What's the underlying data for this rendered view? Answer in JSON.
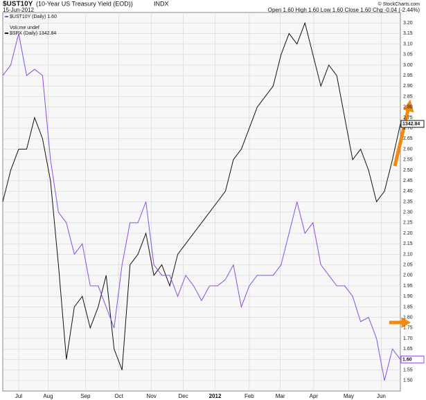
{
  "chart_data": {
    "type": "line",
    "title": "$UST10Y",
    "subtitle": "(10-Year US Treasury Yield (EOD))",
    "exchange": "INDX",
    "date": "15-Jun-2012",
    "quote": "Open 1.60 High 1.60 Low 1.60 Close 1.60 Chg -0.04 (-2.44%)",
    "credit": "© StockCharts.com",
    "volume_legend": "Volume undef",
    "grid": true,
    "x": [
      0,
      1,
      2,
      3,
      4,
      5,
      6,
      7,
      8,
      9,
      10,
      11,
      12,
      13,
      14,
      15,
      16,
      17,
      18,
      19,
      20,
      21,
      22,
      23,
      24,
      25,
      26,
      27,
      28,
      29,
      30,
      31,
      32,
      33,
      34,
      35,
      36,
      37,
      38,
      39,
      40,
      41,
      42,
      43,
      44,
      45,
      46,
      47,
      48,
      49,
      50
    ],
    "xlim": [
      0,
      50
    ],
    "xticks": [
      {
        "value": 2.0,
        "label": "Jul"
      },
      {
        "value": 5.7,
        "label": "Aug"
      },
      {
        "value": 10.4,
        "label": "Sep"
      },
      {
        "value": 14.6,
        "label": "Oct"
      },
      {
        "value": 18.7,
        "label": "Nov"
      },
      {
        "value": 22.7,
        "label": "Dec"
      },
      {
        "value": 26.7,
        "label": "2012"
      },
      {
        "value": 31.0,
        "label": "Feb"
      },
      {
        "value": 34.9,
        "label": "Mar"
      },
      {
        "value": 39.1,
        "label": "Apr"
      },
      {
        "value": 43.5,
        "label": "May"
      },
      {
        "value": 47.6,
        "label": "Jun"
      }
    ],
    "ylim": [
      1.45,
      3.25
    ],
    "yticks": [
      {
        "value": 1.5,
        "label": "1.50"
      },
      {
        "value": 1.55,
        "label": "1.55"
      },
      {
        "value": 1.6,
        "label": "1.60"
      },
      {
        "value": 1.65,
        "label": "1.65"
      },
      {
        "value": 1.7,
        "label": "1.70"
      },
      {
        "value": 1.75,
        "label": "1.75"
      },
      {
        "value": 1.8,
        "label": "1.80"
      },
      {
        "value": 1.85,
        "label": "1.85"
      },
      {
        "value": 1.9,
        "label": "1.90"
      },
      {
        "value": 1.95,
        "label": "1.95"
      },
      {
        "value": 2.0,
        "label": "2.00"
      },
      {
        "value": 2.05,
        "label": "2.05"
      },
      {
        "value": 2.1,
        "label": "2.10"
      },
      {
        "value": 2.15,
        "label": "2.15"
      },
      {
        "value": 2.2,
        "label": "2.20"
      },
      {
        "value": 2.25,
        "label": "2.25"
      },
      {
        "value": 2.3,
        "label": "2.30"
      },
      {
        "value": 2.35,
        "label": "2.35"
      },
      {
        "value": 2.4,
        "label": "2.40"
      },
      {
        "value": 2.45,
        "label": "2.45"
      },
      {
        "value": 2.5,
        "label": "2.50"
      },
      {
        "value": 2.55,
        "label": "2.55"
      },
      {
        "value": 2.6,
        "label": "2.60"
      },
      {
        "value": 2.65,
        "label": "2.65"
      },
      {
        "value": 2.7,
        "label": "2.70"
      },
      {
        "value": 2.75,
        "label": "2.75"
      },
      {
        "value": 2.8,
        "label": "2.80"
      },
      {
        "value": 2.85,
        "label": "2.85"
      },
      {
        "value": 2.9,
        "label": "2.90"
      },
      {
        "value": 2.95,
        "label": "2.95"
      },
      {
        "value": 3.0,
        "label": "3.00"
      },
      {
        "value": 3.05,
        "label": "3.05"
      },
      {
        "value": 3.1,
        "label": "3.10"
      },
      {
        "value": 3.15,
        "label": "3.15"
      },
      {
        "value": 3.2,
        "label": "3.20"
      }
    ],
    "series": [
      {
        "name": "$UST10Y (Daily) 1.60",
        "color": "#8a4ce8",
        "last_label": "1.60",
        "values": [
          2.95,
          3.0,
          3.15,
          2.95,
          2.98,
          2.95,
          2.55,
          2.3,
          2.25,
          2.1,
          2.15,
          1.95,
          1.95,
          1.85,
          1.75,
          2.05,
          2.25,
          2.25,
          2.35,
          2.05,
          2.0,
          2.0,
          1.9,
          2.0,
          1.95,
          1.88,
          1.95,
          1.95,
          1.98,
          2.05,
          1.85,
          1.95,
          2.0,
          2.0,
          2.0,
          2.05,
          2.2,
          2.35,
          2.2,
          2.25,
          2.05,
          2.0,
          1.95,
          1.95,
          1.9,
          1.78,
          1.8,
          1.7,
          1.5,
          1.65,
          1.6
        ]
      },
      {
        "name": "$SPX (Daily) 1342.84",
        "color": "#111111",
        "last_label": "1342.84",
        "values": [
          2.35,
          2.5,
          2.6,
          2.6,
          2.75,
          2.65,
          2.45,
          2.05,
          1.6,
          1.85,
          1.9,
          1.75,
          1.85,
          2.0,
          1.65,
          1.55,
          2.05,
          2.1,
          2.2,
          2.0,
          2.05,
          1.95,
          2.1,
          2.15,
          2.2,
          2.25,
          2.3,
          2.35,
          2.4,
          2.55,
          2.6,
          2.7,
          2.8,
          2.85,
          2.9,
          3.05,
          3.15,
          3.1,
          3.2,
          3.05,
          2.9,
          3.0,
          2.95,
          2.75,
          2.55,
          2.6,
          2.5,
          2.35,
          2.4,
          2.55,
          2.72
        ]
      }
    ]
  }
}
